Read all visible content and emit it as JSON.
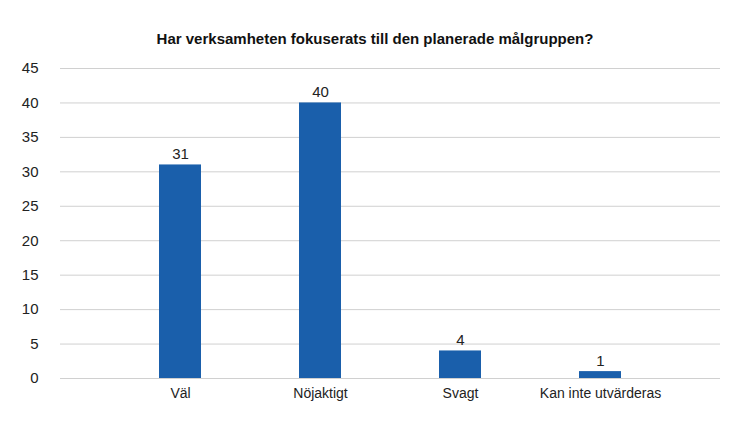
{
  "chart_data": {
    "type": "bar",
    "title": "Har verksamheten fokuserats till den planerade målgruppen?",
    "categories": [
      "Väl",
      "Nöjaktigt",
      "Svagt",
      "Kan inte utvärderas"
    ],
    "values": [
      31,
      40,
      4,
      1
    ],
    "color": "#1a5fab",
    "ylim": [
      0,
      45
    ],
    "yticks": [
      0,
      5,
      10,
      15,
      20,
      25,
      30,
      35,
      40,
      45
    ],
    "grid": true,
    "data_labels": true
  }
}
